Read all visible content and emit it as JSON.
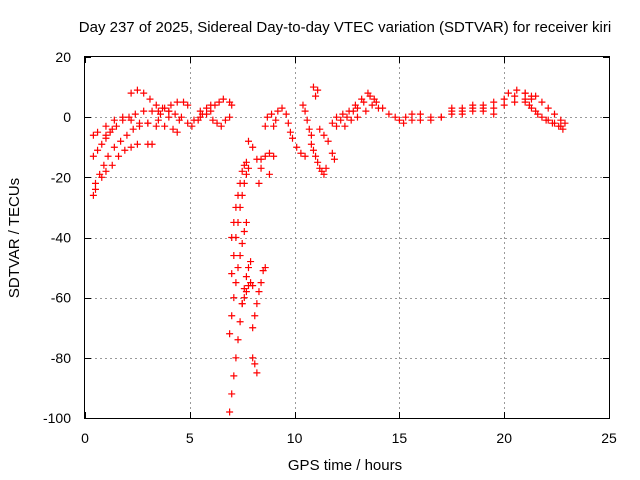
{
  "chart_data": {
    "type": "scatter",
    "title": "Day 237 of 2025, Sidereal Day-to-day VTEC variation (SDTVAR) for receiver kiri",
    "xlabel": "GPS time / hours",
    "ylabel": "SDTVAR / TECUs",
    "xlim": [
      0,
      25
    ],
    "ylim": [
      -100,
      20
    ],
    "xticks": [
      0,
      5,
      10,
      15,
      20,
      25
    ],
    "yticks": [
      -100,
      -80,
      -60,
      -40,
      -20,
      0,
      20
    ],
    "grid": true,
    "marker": "plus",
    "color": "#ff0000",
    "series": [
      {
        "points": [
          [
            0.4,
            -26
          ],
          [
            0.5,
            -22
          ],
          [
            0.7,
            -19
          ],
          [
            0.9,
            -16
          ],
          [
            1.1,
            -13
          ],
          [
            1.4,
            -10
          ],
          [
            1.7,
            -8
          ],
          [
            2.0,
            -6
          ],
          [
            2.3,
            -4
          ],
          [
            2.6,
            -3
          ],
          [
            3.0,
            -2
          ],
          [
            3.5,
            -1
          ],
          [
            4.0,
            0
          ],
          [
            4.5,
            -1
          ],
          [
            0.5,
            -24
          ],
          [
            0.8,
            -20
          ],
          [
            1.0,
            -18
          ],
          [
            1.3,
            -16
          ],
          [
            1.6,
            -13
          ],
          [
            1.9,
            -11
          ],
          [
            2.2,
            -10
          ],
          [
            2.5,
            -9
          ],
          [
            3.0,
            -9
          ],
          [
            3.2,
            -9
          ],
          [
            0.4,
            -13
          ],
          [
            0.6,
            -11
          ],
          [
            0.8,
            -9
          ],
          [
            1.0,
            -7
          ],
          [
            1.2,
            -5
          ],
          [
            1.5,
            -3
          ],
          [
            1.8,
            -1
          ],
          [
            2.1,
            0
          ],
          [
            2.4,
            1
          ],
          [
            2.8,
            2
          ],
          [
            3.2,
            2
          ],
          [
            3.6,
            1
          ],
          [
            4.0,
            2
          ],
          [
            0.4,
            -6
          ],
          [
            0.6,
            -5
          ],
          [
            1.0,
            -6
          ],
          [
            1.3,
            -4
          ],
          [
            1.0,
            -3
          ],
          [
            1.4,
            -1
          ],
          [
            1.8,
            0
          ],
          [
            2.2,
            -1
          ],
          [
            2.6,
            -2
          ],
          [
            3.0,
            -2
          ],
          [
            3.4,
            -3
          ],
          [
            3.8,
            -3
          ],
          [
            4.2,
            -4
          ],
          [
            4.4,
            -5
          ],
          [
            2.2,
            8
          ],
          [
            2.5,
            9
          ],
          [
            2.8,
            8
          ],
          [
            3.1,
            6
          ],
          [
            3.4,
            4
          ],
          [
            3.7,
            3
          ],
          [
            4.0,
            2
          ],
          [
            4.3,
            1
          ],
          [
            4.6,
            0
          ],
          [
            4.9,
            -2
          ],
          [
            5.1,
            -3
          ],
          [
            3.5,
            2
          ],
          [
            3.8,
            3
          ],
          [
            4.1,
            4
          ],
          [
            4.4,
            5
          ],
          [
            4.7,
            5
          ],
          [
            4.9,
            4
          ],
          [
            5.2,
            -1
          ],
          [
            5.5,
            0
          ],
          [
            5.8,
            1
          ],
          [
            6.0,
            2
          ],
          [
            6.2,
            4
          ],
          [
            6.4,
            5
          ],
          [
            6.6,
            6
          ],
          [
            6.9,
            5
          ],
          [
            7.0,
            4
          ],
          [
            5.5,
            2
          ],
          [
            5.8,
            3
          ],
          [
            6.0,
            4
          ],
          [
            5.4,
            -1
          ],
          [
            5.6,
            1
          ],
          [
            6.1,
            -1
          ],
          [
            6.3,
            -2
          ],
          [
            6.5,
            -3
          ],
          [
            6.7,
            -1
          ],
          [
            6.9,
            0
          ],
          [
            6.9,
            -98
          ],
          [
            7.0,
            -92
          ],
          [
            7.1,
            -86
          ],
          [
            7.2,
            -80
          ],
          [
            7.3,
            -74
          ],
          [
            7.4,
            -68
          ],
          [
            7.5,
            -62
          ],
          [
            7.6,
            -57
          ],
          [
            7.7,
            -53
          ],
          [
            7.8,
            -50
          ],
          [
            7.9,
            -48
          ],
          [
            6.9,
            -72
          ],
          [
            7.0,
            -66
          ],
          [
            7.1,
            -60
          ],
          [
            7.2,
            -55
          ],
          [
            7.3,
            -50
          ],
          [
            7.4,
            -46
          ],
          [
            7.5,
            -42
          ],
          [
            7.6,
            -38
          ],
          [
            7.7,
            -35
          ],
          [
            7.0,
            -52
          ],
          [
            7.1,
            -46
          ],
          [
            7.2,
            -40
          ],
          [
            7.3,
            -35
          ],
          [
            7.4,
            -30
          ],
          [
            7.5,
            -26
          ],
          [
            7.6,
            -22
          ],
          [
            7.7,
            -19
          ],
          [
            7.8,
            -17
          ],
          [
            7.0,
            -40
          ],
          [
            7.1,
            -35
          ],
          [
            7.2,
            -30
          ],
          [
            7.3,
            -26
          ],
          [
            7.4,
            -22
          ],
          [
            7.5,
            -18
          ],
          [
            7.6,
            -16
          ],
          [
            7.7,
            -15
          ],
          [
            7.5,
            -62
          ],
          [
            7.6,
            -60
          ],
          [
            7.7,
            -58
          ],
          [
            7.8,
            -56
          ],
          [
            7.9,
            -55
          ],
          [
            8.0,
            -56
          ],
          [
            8.0,
            -70
          ],
          [
            8.1,
            -66
          ],
          [
            8.2,
            -62
          ],
          [
            8.3,
            -58
          ],
          [
            8.4,
            -55
          ],
          [
            8.5,
            -51
          ],
          [
            8.6,
            -50
          ],
          [
            8.0,
            -80
          ],
          [
            8.1,
            -82
          ],
          [
            8.2,
            -85
          ],
          [
            7.8,
            -8
          ],
          [
            8.0,
            -10
          ],
          [
            8.2,
            -14
          ],
          [
            8.3,
            -22
          ],
          [
            8.4,
            -17
          ],
          [
            8.4,
            -14
          ],
          [
            8.6,
            -13
          ],
          [
            8.8,
            -12
          ],
          [
            9.0,
            -13
          ],
          [
            8.8,
            -19
          ],
          [
            8.7,
            0
          ],
          [
            8.9,
            1
          ],
          [
            9.1,
            -1
          ],
          [
            8.6,
            -3
          ],
          [
            9.0,
            -3
          ],
          [
            9.2,
            2
          ],
          [
            9.4,
            3
          ],
          [
            9.6,
            1
          ],
          [
            9.7,
            -2
          ],
          [
            9.8,
            -5
          ],
          [
            9.9,
            -7
          ],
          [
            10.1,
            -10
          ],
          [
            10.3,
            -12
          ],
          [
            10.5,
            -13
          ],
          [
            10.4,
            4
          ],
          [
            10.5,
            2
          ],
          [
            10.6,
            -1
          ],
          [
            10.7,
            -4
          ],
          [
            10.8,
            -6
          ],
          [
            10.9,
            10
          ],
          [
            11.1,
            9
          ],
          [
            11.0,
            7
          ],
          [
            10.8,
            -9
          ],
          [
            10.9,
            -11
          ],
          [
            11.0,
            -13
          ],
          [
            11.1,
            -15
          ],
          [
            11.2,
            -17
          ],
          [
            11.3,
            -18
          ],
          [
            11.4,
            -19
          ],
          [
            11.5,
            -17
          ],
          [
            11.2,
            -4
          ],
          [
            11.4,
            -6
          ],
          [
            11.6,
            -8
          ],
          [
            11.8,
            -12
          ],
          [
            11.9,
            -14
          ],
          [
            11.8,
            -2
          ],
          [
            12.0,
            -3
          ],
          [
            12.2,
            -1
          ],
          [
            12.5,
            0
          ],
          [
            12.8,
            2
          ],
          [
            13.0,
            3
          ],
          [
            13.3,
            5
          ],
          [
            13.6,
            7
          ],
          [
            13.9,
            5
          ],
          [
            14.2,
            3
          ],
          [
            14.5,
            1
          ],
          [
            14.8,
            0
          ],
          [
            12.0,
            0
          ],
          [
            12.3,
            1
          ],
          [
            12.6,
            2
          ],
          [
            12.9,
            4
          ],
          [
            13.2,
            6
          ],
          [
            13.5,
            8
          ],
          [
            13.8,
            6
          ],
          [
            12.4,
            -3
          ],
          [
            12.7,
            -1
          ],
          [
            13.0,
            0
          ],
          [
            13.4,
            2
          ],
          [
            13.7,
            4
          ],
          [
            14.0,
            3
          ],
          [
            15.0,
            -1
          ],
          [
            15.3,
            0
          ],
          [
            15.6,
            1
          ],
          [
            16.0,
            1
          ],
          [
            16.5,
            0
          ],
          [
            17.0,
            0
          ],
          [
            17.5,
            1
          ],
          [
            18.0,
            2
          ],
          [
            18.5,
            3
          ],
          [
            19.0,
            4
          ],
          [
            19.5,
            5
          ],
          [
            20.0,
            6
          ],
          [
            20.5,
            7
          ],
          [
            21.0,
            8
          ],
          [
            21.3,
            6
          ],
          [
            15.2,
            -2
          ],
          [
            15.6,
            -1
          ],
          [
            16.0,
            -1
          ],
          [
            16.5,
            -1
          ],
          [
            17.0,
            0
          ],
          [
            17.5,
            2
          ],
          [
            18.0,
            1
          ],
          [
            18.5,
            2
          ],
          [
            19.0,
            2
          ],
          [
            19.5,
            3
          ],
          [
            20.0,
            4
          ],
          [
            20.5,
            5
          ],
          [
            21.0,
            6
          ],
          [
            17.5,
            3
          ],
          [
            18.0,
            3
          ],
          [
            18.5,
            4
          ],
          [
            19.0,
            3
          ],
          [
            19.5,
            1
          ],
          [
            20.2,
            8
          ],
          [
            20.6,
            9
          ],
          [
            21.0,
            8
          ],
          [
            21.3,
            7
          ],
          [
            21.0,
            5
          ],
          [
            21.3,
            3
          ],
          [
            21.6,
            1
          ],
          [
            22.0,
            -1
          ],
          [
            22.3,
            -2
          ],
          [
            22.6,
            -3
          ],
          [
            22.8,
            -4
          ],
          [
            21.2,
            4
          ],
          [
            21.5,
            2
          ],
          [
            21.8,
            0
          ],
          [
            22.1,
            -1
          ],
          [
            22.4,
            -2
          ],
          [
            22.7,
            -3
          ],
          [
            21.5,
            7
          ],
          [
            21.8,
            5
          ],
          [
            22.1,
            3
          ],
          [
            22.4,
            1
          ],
          [
            22.7,
            -1
          ],
          [
            22.9,
            -2
          ]
        ]
      }
    ]
  }
}
